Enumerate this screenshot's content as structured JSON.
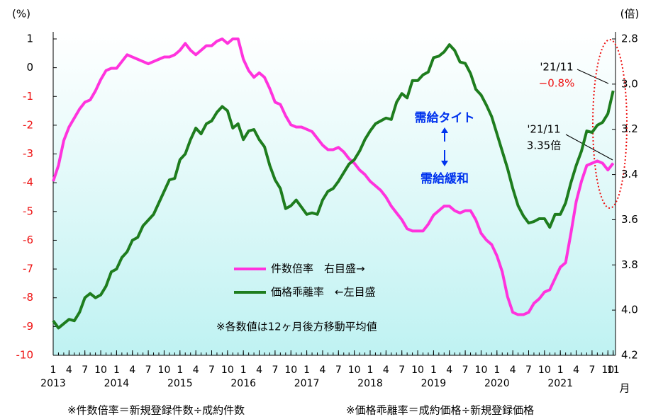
{
  "chart_data": {
    "type": "line",
    "y_label": "(%)",
    "y2_label": "(倍)",
    "x_unit": "月",
    "x": [
      "2013-01",
      "2013-02",
      "2013-03",
      "2013-04",
      "2013-05",
      "2013-06",
      "2013-07",
      "2013-08",
      "2013-09",
      "2013-10",
      "2013-11",
      "2013-12",
      "2014-01",
      "2014-02",
      "2014-03",
      "2014-04",
      "2014-05",
      "2014-06",
      "2014-07",
      "2014-08",
      "2014-09",
      "2014-10",
      "2014-11",
      "2014-12",
      "2015-01",
      "2015-02",
      "2015-03",
      "2015-04",
      "2015-05",
      "2015-06",
      "2015-07",
      "2015-08",
      "2015-09",
      "2015-10",
      "2015-11",
      "2015-12",
      "2016-01",
      "2016-02",
      "2016-03",
      "2016-04",
      "2016-05",
      "2016-06",
      "2016-07",
      "2016-08",
      "2016-09",
      "2016-10",
      "2016-11",
      "2016-12",
      "2017-01",
      "2017-02",
      "2017-03",
      "2017-04",
      "2017-05",
      "2017-06",
      "2017-07",
      "2017-08",
      "2017-09",
      "2017-10",
      "2017-11",
      "2017-12",
      "2018-01",
      "2018-02",
      "2018-03",
      "2018-04",
      "2018-05",
      "2018-06",
      "2018-07",
      "2018-08",
      "2018-09",
      "2018-10",
      "2018-11",
      "2018-12",
      "2019-01",
      "2019-02",
      "2019-03",
      "2019-04",
      "2019-05",
      "2019-06",
      "2019-07",
      "2019-08",
      "2019-09",
      "2019-10",
      "2019-11",
      "2019-12",
      "2020-01",
      "2020-02",
      "2020-03",
      "2020-04",
      "2020-05",
      "2020-06",
      "2020-07",
      "2020-08",
      "2020-09",
      "2020-10",
      "2020-11",
      "2020-12",
      "2021-01",
      "2021-02",
      "2021-03",
      "2021-04",
      "2021-05",
      "2021-06",
      "2021-07",
      "2021-08",
      "2021-09",
      "2021-10",
      "2021-11"
    ],
    "xticks": [
      {
        "value": "2013-01",
        "label": "1"
      },
      {
        "value": "2013-04",
        "label": "4"
      },
      {
        "value": "2013-07",
        "label": "7"
      },
      {
        "value": "2013-10",
        "label": "10"
      },
      {
        "value": "2014-01",
        "label": "1"
      },
      {
        "value": "2014-04",
        "label": "4"
      },
      {
        "value": "2014-07",
        "label": "7"
      },
      {
        "value": "2014-10",
        "label": "10"
      },
      {
        "value": "2015-01",
        "label": "1"
      },
      {
        "value": "2015-04",
        "label": "4"
      },
      {
        "value": "2015-07",
        "label": "7"
      },
      {
        "value": "2015-10",
        "label": "10"
      },
      {
        "value": "2016-01",
        "label": "1"
      },
      {
        "value": "2016-04",
        "label": "4"
      },
      {
        "value": "2016-07",
        "label": "7"
      },
      {
        "value": "2016-10",
        "label": "10"
      },
      {
        "value": "2017-01",
        "label": "1"
      },
      {
        "value": "2017-04",
        "label": "4"
      },
      {
        "value": "2017-07",
        "label": "7"
      },
      {
        "value": "2017-10",
        "label": "10"
      },
      {
        "value": "2018-01",
        "label": "1"
      },
      {
        "value": "2018-04",
        "label": "4"
      },
      {
        "value": "2018-07",
        "label": "7"
      },
      {
        "value": "2018-10",
        "label": "10"
      },
      {
        "value": "2019-01",
        "label": "1"
      },
      {
        "value": "2019-04",
        "label": "4"
      },
      {
        "value": "2019-07",
        "label": "7"
      },
      {
        "value": "2019-10",
        "label": "10"
      },
      {
        "value": "2020-01",
        "label": "1"
      },
      {
        "value": "2020-04",
        "label": "4"
      },
      {
        "value": "2020-07",
        "label": "7"
      },
      {
        "value": "2020-10",
        "label": "10"
      },
      {
        "value": "2021-01",
        "label": "1"
      },
      {
        "value": "2021-04",
        "label": "4"
      },
      {
        "value": "2021-07",
        "label": "7"
      },
      {
        "value": "2021-10",
        "label": "10"
      },
      {
        "value": "2021-11",
        "label": "11"
      }
    ],
    "year_labels": [
      {
        "value": "2013-01",
        "label": "2013"
      },
      {
        "value": "2014-01",
        "label": "2014"
      },
      {
        "value": "2015-01",
        "label": "2015"
      },
      {
        "value": "2016-01",
        "label": "2016"
      },
      {
        "value": "2017-01",
        "label": "2017"
      },
      {
        "value": "2018-01",
        "label": "2018"
      },
      {
        "value": "2019-01",
        "label": "2019"
      },
      {
        "value": "2020-01",
        "label": "2020"
      },
      {
        "value": "2021-01",
        "label": "2021"
      }
    ],
    "ylim": [
      -10,
      1
    ],
    "yticks": [
      -10,
      -9,
      -8,
      -7,
      -6,
      -5,
      -4,
      -3,
      -2,
      -1,
      0,
      1
    ],
    "y2lim": [
      4.2,
      2.8
    ],
    "y2ticks": [
      4.2,
      {
        "value": 4,
        "label": "4.0"
      },
      3.8,
      3.6,
      3.4,
      3.2,
      {
        "value": 3,
        "label": "3.0"
      },
      2.8
    ],
    "series": [
      {
        "name": "件数倍率　右目盛→",
        "color": "#ff33dd",
        "axis": "y2",
        "values": [
          3.43,
          3.36,
          3.25,
          3.19,
          3.15,
          3.11,
          3.08,
          3.07,
          3.03,
          2.98,
          2.94,
          2.93,
          2.93,
          2.9,
          2.87,
          2.88,
          2.89,
          2.9,
          2.91,
          2.9,
          2.89,
          2.88,
          2.88,
          2.87,
          2.85,
          2.82,
          2.85,
          2.87,
          2.85,
          2.83,
          2.83,
          2.81,
          2.8,
          2.82,
          2.8,
          2.8,
          2.89,
          2.94,
          2.97,
          2.95,
          2.97,
          3.02,
          3.08,
          3.09,
          3.14,
          3.18,
          3.19,
          3.19,
          3.2,
          3.21,
          3.24,
          3.27,
          3.29,
          3.29,
          3.28,
          3.3,
          3.33,
          3.35,
          3.38,
          3.4,
          3.43,
          3.45,
          3.47,
          3.5,
          3.54,
          3.57,
          3.6,
          3.64,
          3.65,
          3.65,
          3.65,
          3.62,
          3.58,
          3.56,
          3.54,
          3.54,
          3.56,
          3.57,
          3.56,
          3.56,
          3.6,
          3.66,
          3.69,
          3.71,
          3.76,
          3.83,
          3.94,
          4.01,
          4.02,
          4.02,
          4.01,
          3.97,
          3.95,
          3.92,
          3.91,
          3.86,
          3.81,
          3.79,
          3.66,
          3.52,
          3.43,
          3.36,
          3.35,
          3.34,
          3.35,
          3.38,
          3.35
        ]
      },
      {
        "name": "価格乖離率　←左目盛",
        "color": "#1e7d1e",
        "values": [
          -8.8,
          -9.05,
          -8.9,
          -8.75,
          -8.8,
          -8.5,
          -8.0,
          -7.85,
          -8.0,
          -7.9,
          -7.6,
          -7.1,
          -7.0,
          -6.6,
          -6.4,
          -6.0,
          -5.9,
          -5.5,
          -5.3,
          -5.1,
          -4.7,
          -4.3,
          -3.9,
          -3.85,
          -3.2,
          -3.0,
          -2.5,
          -2.1,
          -2.3,
          -1.95,
          -1.85,
          -1.55,
          -1.35,
          -1.5,
          -2.1,
          -1.95,
          -2.5,
          -2.2,
          -2.15,
          -2.5,
          -2.75,
          -3.4,
          -3.9,
          -4.2,
          -4.9,
          -4.8,
          -4.6,
          -4.85,
          -5.1,
          -5.05,
          -5.1,
          -4.6,
          -4.3,
          -4.2,
          -3.95,
          -3.65,
          -3.35,
          -3.2,
          -2.9,
          -2.5,
          -2.2,
          -1.95,
          -1.85,
          -1.75,
          -1.8,
          -1.2,
          -0.9,
          -1.05,
          -0.45,
          -0.45,
          -0.25,
          -0.15,
          0.35,
          0.4,
          0.55,
          0.8,
          0.6,
          0.2,
          0.15,
          -0.2,
          -0.75,
          -0.95,
          -1.3,
          -1.7,
          -2.3,
          -2.9,
          -3.5,
          -4.2,
          -4.8,
          -5.15,
          -5.4,
          -5.35,
          -5.25,
          -5.25,
          -5.55,
          -5.1,
          -5.1,
          -4.7,
          -4.0,
          -3.4,
          -2.9,
          -2.2,
          -2.25,
          -2.0,
          -1.9,
          -1.6,
          -0.8
        ]
      }
    ],
    "annotations": [
      "需給タイト",
      "需給緩和",
      "※各数値は12ヶ月後方移動平均値"
    ],
    "callouts": [
      {
        "date": "'21/11",
        "label": "−0.8%"
      },
      {
        "date": "'21/11",
        "label": "3.35倍"
      }
    ],
    "footnotes": [
      "※件数倍率＝新規登録件数÷成約件数",
      "※価格乖離率＝成約価格÷新規登録価格"
    ]
  }
}
